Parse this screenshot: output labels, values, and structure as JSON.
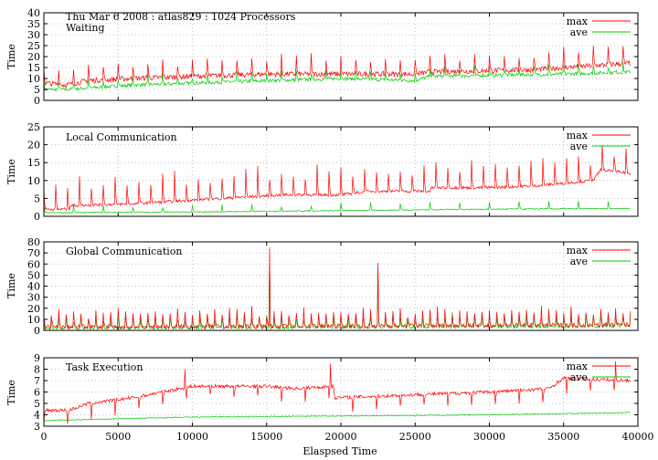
{
  "chart_data": {
    "header": "Thu Mar 6 2008 : atlas829 : 1024 Processors",
    "xlabel": "Elaspsed Time",
    "xlim": [
      0,
      40000
    ],
    "xticks": [
      0,
      5000,
      10000,
      15000,
      20000,
      25000,
      30000,
      35000,
      40000
    ],
    "grid": true,
    "legend_position": "top-right",
    "colors": {
      "max": "#ff0000",
      "ave": "#00cc00"
    },
    "panels": [
      {
        "type": "line",
        "title": "Waiting",
        "ylabel": "Time",
        "ylim": [
          0,
          40
        ],
        "yticks": [
          0,
          5,
          10,
          15,
          20,
          25,
          30,
          35,
          40
        ],
        "series": [
          {
            "name": "max",
            "anchors": [
              [
                0,
                8
              ],
              [
                1500,
                7
              ],
              [
                3000,
                9
              ],
              [
                6000,
                10
              ],
              [
                10000,
                11
              ],
              [
                15000,
                12
              ],
              [
                20000,
                12
              ],
              [
                25000,
                12
              ],
              [
                26000,
                13
              ],
              [
                33000,
                14
              ],
              [
                35000,
                15
              ],
              [
                39500,
                17
              ]
            ],
            "spike_every": 1000,
            "spike_height": 8,
            "noise": 1.2
          },
          {
            "name": "ave",
            "anchors": [
              [
                0,
                5
              ],
              [
                1500,
                5
              ],
              [
                6000,
                7
              ],
              [
                15000,
                9
              ],
              [
                20000,
                10
              ],
              [
                25000,
                9
              ],
              [
                26000,
                11
              ],
              [
                35000,
                12
              ],
              [
                39500,
                13
              ]
            ],
            "spike_every": 1000,
            "spike_height": 4,
            "noise": 0.8
          }
        ]
      },
      {
        "type": "line",
        "title": "Local Communication",
        "ylabel": "Time",
        "ylim": [
          0,
          25
        ],
        "yticks": [
          0,
          5,
          10,
          15,
          20,
          25
        ],
        "series": [
          {
            "name": "max",
            "anchors": [
              [
                0,
                2
              ],
              [
                1700,
                2
              ],
              [
                1800,
                3
              ],
              [
                6000,
                3.5
              ],
              [
                10000,
                4.5
              ],
              [
                12000,
                5
              ],
              [
                16000,
                6
              ],
              [
                20000,
                6
              ],
              [
                22000,
                7
              ],
              [
                26000,
                7
              ],
              [
                26100,
                8
              ],
              [
                30000,
                8
              ],
              [
                33000,
                8.5
              ],
              [
                37000,
                10
              ],
              [
                37500,
                13
              ],
              [
                39500,
                12
              ]
            ],
            "spike_every": 800,
            "spike_height": 7,
            "noise": 0.4
          },
          {
            "name": "ave",
            "anchors": [
              [
                0,
                1
              ],
              [
                10000,
                1.2
              ],
              [
                20000,
                1.6
              ],
              [
                30000,
                2
              ],
              [
                39500,
                2.2
              ]
            ],
            "spike_every": 2000,
            "spike_height": 2,
            "noise": 0.15
          }
        ]
      },
      {
        "type": "line",
        "title": "Global Communication",
        "ylabel": "Time",
        "ylim": [
          0,
          80
        ],
        "yticks": [
          0,
          10,
          20,
          30,
          40,
          50,
          60,
          70,
          80
        ],
        "series": [
          {
            "name": "max",
            "anchors": [
              [
                0,
                3
              ],
              [
                20000,
                4
              ],
              [
                39500,
                5
              ]
            ],
            "spike_every": 500,
            "spike_height": 14,
            "noise": 2,
            "peaks": [
              [
                15200,
                75
              ],
              [
                22500,
                61
              ]
            ]
          },
          {
            "name": "ave",
            "anchors": [
              [
                0,
                2
              ],
              [
                20000,
                3
              ],
              [
                39500,
                4
              ]
            ],
            "spike_every": 500,
            "spike_height": 10,
            "noise": 1.5,
            "peaks": [
              [
                15200,
                70
              ],
              [
                22500,
                58
              ]
            ]
          }
        ]
      },
      {
        "type": "line",
        "title": "Task Execution",
        "ylabel": "Time",
        "ylim": [
          3,
          9
        ],
        "yticks": [
          3,
          4,
          5,
          6,
          7,
          8,
          9
        ],
        "series": [
          {
            "name": "max",
            "anchors": [
              [
                0,
                4.4
              ],
              [
                1700,
                4.4
              ],
              [
                3000,
                5
              ],
              [
                6000,
                5.5
              ],
              [
                8000,
                6
              ],
              [
                10000,
                6.5
              ],
              [
                15000,
                6.5
              ],
              [
                17000,
                6.3
              ],
              [
                19500,
                6.5
              ],
              [
                19600,
                5.5
              ],
              [
                30000,
                6
              ],
              [
                34000,
                6.3
              ],
              [
                35000,
                7.2
              ],
              [
                39500,
                7
              ]
            ],
            "spike_every": 1600,
            "spike_height": -1.2,
            "noise": 0.15,
            "peaks": [
              [
                19300,
                8.5
              ],
              [
                38500,
                8.7
              ],
              [
                9500,
                8
              ]
            ]
          },
          {
            "name": "ave",
            "anchors": [
              [
                0,
                3.5
              ],
              [
                10000,
                3.8
              ],
              [
                20000,
                3.9
              ],
              [
                30000,
                4
              ],
              [
                39500,
                4.2
              ]
            ],
            "spike_every": 0,
            "spike_height": 0,
            "noise": 0.04
          }
        ]
      }
    ]
  }
}
